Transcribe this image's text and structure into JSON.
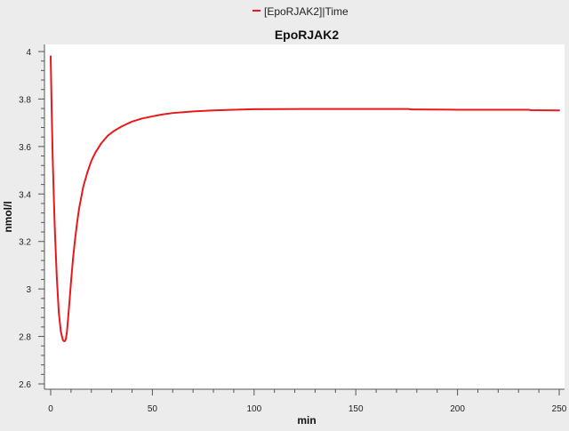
{
  "chart_data": {
    "type": "line",
    "title": "EpoRJAK2",
    "xlabel": "min",
    "ylabel": "nmol/l",
    "xlim": [
      -2,
      250
    ],
    "ylim": [
      2.6,
      4.0
    ],
    "x_ticks": [
      0,
      50,
      100,
      150,
      200,
      250
    ],
    "x_tick_labels": [
      "0",
      "50",
      "100",
      "150",
      "200",
      "250"
    ],
    "y_ticks": [
      2.6,
      2.8,
      3.0,
      3.2,
      3.4,
      3.6,
      3.8,
      4.0
    ],
    "y_tick_labels": [
      "2.6",
      "2.8",
      "3",
      "3.2",
      "3.4",
      "3.6",
      "3.8",
      "4"
    ],
    "grid": false,
    "legend_position": "top-center",
    "series": [
      {
        "name": "[EpoRJAK2]|Time",
        "color": "#e8191c",
        "x": [
          0,
          0.5,
          1,
          1.5,
          2,
          3,
          4,
          5,
          6,
          6.5,
          7,
          7.5,
          8,
          9,
          10,
          11,
          12,
          13,
          14,
          16,
          18,
          20,
          22,
          25,
          28,
          31,
          35,
          40,
          45,
          50,
          55,
          60,
          70,
          80,
          90,
          100,
          125,
          150,
          176,
          177,
          200,
          235,
          236,
          250
        ],
        "values": [
          3.98,
          3.75,
          3.55,
          3.4,
          3.26,
          3.05,
          2.9,
          2.82,
          2.785,
          2.78,
          2.78,
          2.79,
          2.82,
          2.92,
          3.03,
          3.13,
          3.21,
          3.28,
          3.34,
          3.43,
          3.49,
          3.54,
          3.575,
          3.615,
          3.645,
          3.665,
          3.685,
          3.705,
          3.718,
          3.727,
          3.735,
          3.741,
          3.748,
          3.752,
          3.755,
          3.757,
          3.758,
          3.758,
          3.758,
          3.756,
          3.755,
          3.755,
          3.753,
          3.752
        ]
      }
    ]
  }
}
